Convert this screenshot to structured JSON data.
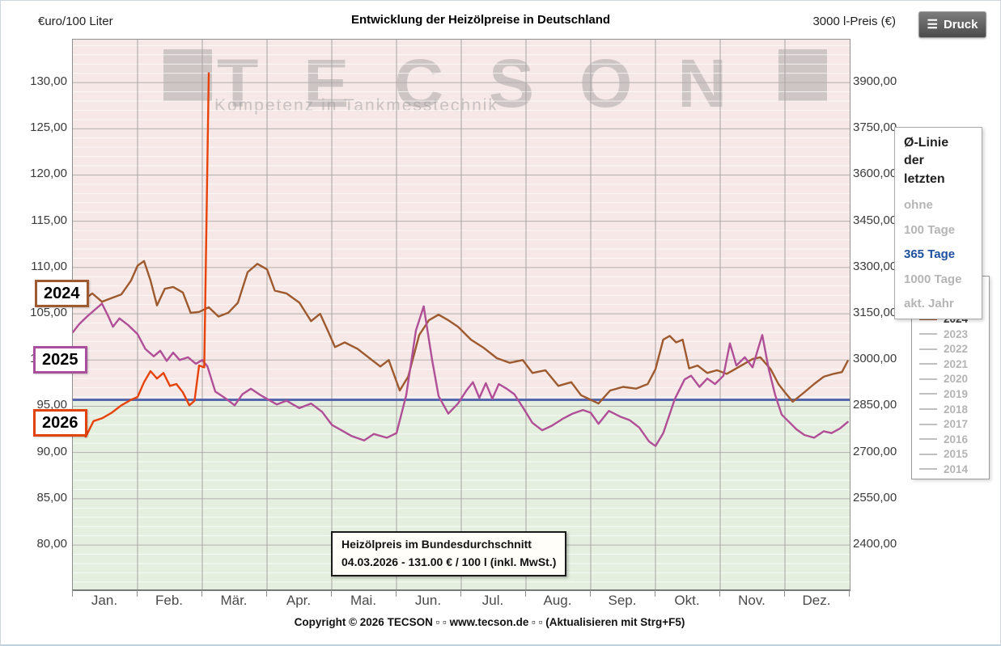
{
  "header": {
    "left_axis_title": "€uro/100 Liter",
    "title": "Entwicklung der Heizölpreise in Deutschland",
    "right_axis_title": "3000 l-Preis (€)",
    "print_label": "Druck"
  },
  "watermark": {
    "text": "TECSON",
    "subtitle": "Kompetenz in Tankmesstechnik"
  },
  "avg_panel": {
    "title": "Ø-Linie der letzten",
    "options": [
      {
        "label": "ohne",
        "active": false
      },
      {
        "label": "100 Tage",
        "active": false
      },
      {
        "label": "365 Tage",
        "active": true
      },
      {
        "label": "1000 Tage",
        "active": false
      },
      {
        "label": "akt. Jahr",
        "active": false
      }
    ],
    "active_color": "#1d4f9f"
  },
  "years_legend": {
    "years": [
      "2026",
      "2025",
      "2024",
      "2023",
      "2022",
      "2021",
      "2020",
      "2019",
      "2018",
      "2017",
      "2016",
      "2015",
      "2014"
    ],
    "active_year": "2024"
  },
  "year_line_labels": [
    {
      "label": "2024",
      "color": "#9e5a30",
      "top": 345,
      "left": 42
    },
    {
      "label": "2025",
      "color": "#aa4f9b",
      "top": 427,
      "left": 40
    },
    {
      "label": "2026",
      "color": "#e2430e",
      "top": 505,
      "left": 40
    }
  ],
  "tooltip": {
    "line1": "Heizölpreis im Bundesdurchschnitt",
    "line2": "04.03.2026 - 131.00 € / 100 l (inkl. MwSt.)"
  },
  "footer": {
    "copyright": "Copyright © 2026 TECSON ▫ ▫ www.tecson.de ▫ ▫ (Aktualisieren mit Strg+F5)"
  },
  "chart_data": {
    "type": "line",
    "title": "Entwicklung der Heizölpreise in Deutschland",
    "xlabel": "",
    "ylabel_left": "€uro/100 Liter",
    "ylabel_right": "3000 l-Preis (€)",
    "x_unit": "months, 0 = 1. Januar",
    "x_tick_labels": [
      "Jan.",
      "Feb.",
      "Mär.",
      "Apr.",
      "Mai.",
      "Jun.",
      "Jul.",
      "Aug.",
      "Sep.",
      "Okt.",
      "Nov.",
      "Dez."
    ],
    "ylim_left": [
      75.2,
      134.64
    ],
    "ylim_right": [
      2256,
      4039
    ],
    "y_ticks_left": [
      80,
      85,
      90,
      95,
      100,
      105,
      110,
      115,
      120,
      125,
      130
    ],
    "y_ticks_right": [
      2400,
      2550,
      2700,
      2850,
      3000,
      3150,
      3300,
      3450,
      3600,
      3750,
      3900
    ],
    "right_axis_factor": 30,
    "grid": true,
    "region_split_value": 95.7,
    "region_above_color": "#f5e8e6",
    "region_below_color": "#e4efdf",
    "average_line": {
      "label": "365 Tage",
      "value": 95.7,
      "color": "#5767ad"
    },
    "series": [
      {
        "name": "2024",
        "color": "#9e5a2e",
        "points": [
          [
            0.0,
            107.8
          ],
          [
            0.15,
            106.4
          ],
          [
            0.3,
            107.2
          ],
          [
            0.45,
            106.3
          ],
          [
            0.6,
            106.7
          ],
          [
            0.75,
            107.1
          ],
          [
            0.9,
            108.6
          ],
          [
            1.0,
            110.2
          ],
          [
            1.1,
            110.7
          ],
          [
            1.2,
            108.6
          ],
          [
            1.3,
            105.9
          ],
          [
            1.42,
            107.7
          ],
          [
            1.55,
            107.9
          ],
          [
            1.7,
            107.3
          ],
          [
            1.82,
            105.1
          ],
          [
            1.95,
            105.2
          ],
          [
            2.1,
            105.7
          ],
          [
            2.25,
            104.7
          ],
          [
            2.4,
            105.1
          ],
          [
            2.55,
            106.2
          ],
          [
            2.7,
            109.5
          ],
          [
            2.85,
            110.4
          ],
          [
            3.0,
            109.8
          ],
          [
            3.12,
            107.5
          ],
          [
            3.3,
            107.2
          ],
          [
            3.5,
            106.2
          ],
          [
            3.68,
            104.2
          ],
          [
            3.82,
            105.0
          ],
          [
            3.95,
            103.0
          ],
          [
            4.05,
            101.4
          ],
          [
            4.2,
            101.9
          ],
          [
            4.4,
            101.2
          ],
          [
            4.6,
            100.1
          ],
          [
            4.75,
            99.3
          ],
          [
            4.88,
            100.0
          ],
          [
            5.05,
            96.7
          ],
          [
            5.18,
            98.2
          ],
          [
            5.35,
            102.7
          ],
          [
            5.5,
            104.3
          ],
          [
            5.65,
            104.9
          ],
          [
            5.8,
            104.3
          ],
          [
            5.95,
            103.6
          ],
          [
            6.15,
            102.2
          ],
          [
            6.35,
            101.3
          ],
          [
            6.55,
            100.2
          ],
          [
            6.75,
            99.7
          ],
          [
            6.95,
            100.0
          ],
          [
            7.1,
            98.6
          ],
          [
            7.3,
            98.9
          ],
          [
            7.5,
            97.2
          ],
          [
            7.7,
            97.6
          ],
          [
            7.85,
            96.2
          ],
          [
            8.0,
            95.7
          ],
          [
            8.12,
            95.3
          ],
          [
            8.3,
            96.7
          ],
          [
            8.5,
            97.1
          ],
          [
            8.7,
            96.9
          ],
          [
            8.88,
            97.4
          ],
          [
            9.0,
            99.0
          ],
          [
            9.12,
            102.2
          ],
          [
            9.22,
            102.6
          ],
          [
            9.32,
            101.9
          ],
          [
            9.42,
            102.2
          ],
          [
            9.52,
            99.1
          ],
          [
            9.65,
            99.4
          ],
          [
            9.8,
            98.6
          ],
          [
            9.95,
            98.9
          ],
          [
            10.1,
            98.5
          ],
          [
            10.3,
            99.3
          ],
          [
            10.5,
            100.1
          ],
          [
            10.62,
            100.3
          ],
          [
            10.78,
            99.0
          ],
          [
            10.9,
            97.4
          ],
          [
            11.0,
            96.5
          ],
          [
            11.12,
            95.5
          ],
          [
            11.28,
            96.4
          ],
          [
            11.45,
            97.4
          ],
          [
            11.6,
            98.2
          ],
          [
            11.75,
            98.5
          ],
          [
            11.88,
            98.7
          ],
          [
            11.97,
            99.9
          ]
        ]
      },
      {
        "name": "2025",
        "color": "#b04f97",
        "points": [
          [
            0.0,
            103.0
          ],
          [
            0.1,
            103.9
          ],
          [
            0.22,
            104.7
          ],
          [
            0.35,
            105.5
          ],
          [
            0.45,
            106.1
          ],
          [
            0.55,
            104.7
          ],
          [
            0.62,
            103.6
          ],
          [
            0.72,
            104.5
          ],
          [
            0.85,
            103.8
          ],
          [
            1.0,
            102.8
          ],
          [
            1.12,
            101.2
          ],
          [
            1.25,
            100.4
          ],
          [
            1.35,
            101.0
          ],
          [
            1.45,
            99.9
          ],
          [
            1.55,
            100.8
          ],
          [
            1.65,
            100.0
          ],
          [
            1.78,
            100.3
          ],
          [
            1.9,
            99.6
          ],
          [
            2.0,
            100.0
          ],
          [
            2.08,
            99.3
          ],
          [
            2.2,
            96.6
          ],
          [
            2.35,
            95.9
          ],
          [
            2.5,
            95.1
          ],
          [
            2.62,
            96.3
          ],
          [
            2.75,
            96.9
          ],
          [
            2.9,
            96.2
          ],
          [
            3.0,
            95.8
          ],
          [
            3.15,
            95.2
          ],
          [
            3.3,
            95.6
          ],
          [
            3.5,
            94.8
          ],
          [
            3.68,
            95.3
          ],
          [
            3.85,
            94.4
          ],
          [
            4.0,
            93.0
          ],
          [
            4.15,
            92.4
          ],
          [
            4.3,
            91.8
          ],
          [
            4.5,
            91.3
          ],
          [
            4.65,
            92.0
          ],
          [
            4.85,
            91.6
          ],
          [
            5.0,
            92.1
          ],
          [
            5.15,
            96.2
          ],
          [
            5.3,
            103.2
          ],
          [
            5.42,
            105.8
          ],
          [
            5.55,
            100.0
          ],
          [
            5.65,
            96.1
          ],
          [
            5.8,
            94.2
          ],
          [
            5.95,
            95.3
          ],
          [
            6.08,
            96.7
          ],
          [
            6.18,
            97.6
          ],
          [
            6.28,
            95.9
          ],
          [
            6.38,
            97.5
          ],
          [
            6.48,
            95.8
          ],
          [
            6.58,
            97.4
          ],
          [
            6.7,
            96.9
          ],
          [
            6.82,
            96.3
          ],
          [
            6.95,
            94.9
          ],
          [
            7.1,
            93.2
          ],
          [
            7.25,
            92.4
          ],
          [
            7.4,
            92.9
          ],
          [
            7.58,
            93.7
          ],
          [
            7.72,
            94.2
          ],
          [
            7.88,
            94.6
          ],
          [
            8.0,
            94.3
          ],
          [
            8.12,
            93.1
          ],
          [
            8.28,
            94.5
          ],
          [
            8.45,
            93.9
          ],
          [
            8.6,
            93.5
          ],
          [
            8.75,
            92.7
          ],
          [
            8.9,
            91.2
          ],
          [
            9.0,
            90.7
          ],
          [
            9.12,
            92.1
          ],
          [
            9.3,
            95.8
          ],
          [
            9.45,
            97.9
          ],
          [
            9.55,
            98.3
          ],
          [
            9.68,
            97.1
          ],
          [
            9.8,
            98.0
          ],
          [
            9.92,
            97.4
          ],
          [
            10.05,
            98.3
          ],
          [
            10.15,
            101.8
          ],
          [
            10.25,
            99.4
          ],
          [
            10.38,
            100.3
          ],
          [
            10.5,
            99.2
          ],
          [
            10.58,
            101.1
          ],
          [
            10.65,
            102.7
          ],
          [
            10.75,
            99.0
          ],
          [
            10.85,
            96.2
          ],
          [
            10.95,
            94.1
          ],
          [
            11.05,
            93.4
          ],
          [
            11.18,
            92.5
          ],
          [
            11.3,
            91.9
          ],
          [
            11.45,
            91.6
          ],
          [
            11.6,
            92.3
          ],
          [
            11.72,
            92.1
          ],
          [
            11.85,
            92.6
          ],
          [
            11.97,
            93.3
          ]
        ]
      },
      {
        "name": "2026",
        "color": "#e8420b",
        "points": [
          [
            0.0,
            93.9
          ],
          [
            0.08,
            93.5
          ],
          [
            0.2,
            91.7
          ],
          [
            0.32,
            93.4
          ],
          [
            0.45,
            93.7
          ],
          [
            0.6,
            94.3
          ],
          [
            0.75,
            95.1
          ],
          [
            0.9,
            95.7
          ],
          [
            1.0,
            96.0
          ],
          [
            1.1,
            97.6
          ],
          [
            1.2,
            98.8
          ],
          [
            1.3,
            98.0
          ],
          [
            1.4,
            98.6
          ],
          [
            1.5,
            97.2
          ],
          [
            1.6,
            97.4
          ],
          [
            1.7,
            96.5
          ],
          [
            1.8,
            95.1
          ],
          [
            1.88,
            95.6
          ],
          [
            1.95,
            99.4
          ],
          [
            2.03,
            99.2
          ],
          [
            2.1,
            131.0
          ]
        ]
      }
    ],
    "annotation": "04.03.2026 - 131.00 € / 100 l (inkl. MwSt.)"
  }
}
